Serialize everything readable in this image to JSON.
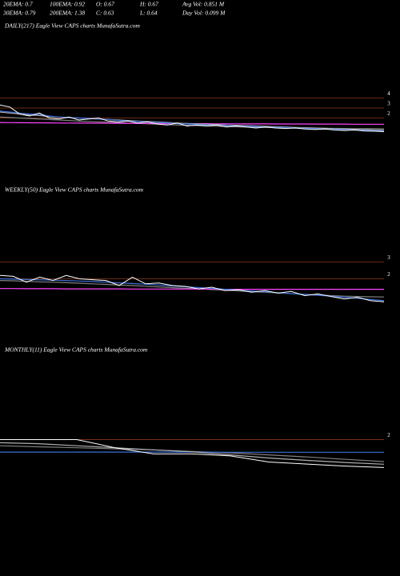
{
  "header": {
    "rows": [
      [
        "20EMA: 0.7",
        "100EMA: 0.92",
        "O: 0.67",
        "H: 0.67",
        "Avg Vol: 0.851 M"
      ],
      [
        "30EMA: 0.79",
        "200EMA: 1.38",
        "C: 0.63",
        "L: 0.64",
        "Day Vol: 0.099 M"
      ]
    ]
  },
  "chart_data": [
    {
      "type": "line",
      "title": "DAILY(217) Eagle  View  CAPS charts MunafaSutra.com",
      "ylim": [
        -3.4,
        11.4
      ],
      "yticks": [
        2,
        3,
        4
      ],
      "grid": true,
      "series": [
        {
          "color": "#808080",
          "values": [
            2.1,
            2.05,
            2.0,
            1.95,
            1.9,
            1.85,
            1.8,
            1.75,
            1.7,
            1.66,
            1.62,
            1.58,
            1.54,
            1.5,
            1.46,
            1.42,
            1.38,
            1.34,
            1.3,
            1.27,
            1.24,
            1.21,
            1.18,
            1.15,
            1.12,
            1.1,
            1.08,
            1.06,
            1.04,
            1.02,
            1.0,
            0.99,
            0.98,
            0.97,
            0.96,
            0.95,
            0.94,
            0.93,
            0.925,
            0.92
          ]
        },
        {
          "color": "#ff44ff",
          "values": [
            1.55,
            1.54,
            1.53,
            1.52,
            1.52,
            1.51,
            1.5,
            1.5,
            1.49,
            1.49,
            1.48,
            1.48,
            1.47,
            1.47,
            1.46,
            1.46,
            1.45,
            1.45,
            1.44,
            1.44,
            1.43,
            1.43,
            1.42,
            1.42,
            1.42,
            1.41,
            1.41,
            1.41,
            1.4,
            1.4,
            1.4,
            1.4,
            1.39,
            1.39,
            1.39,
            1.39,
            1.38,
            1.38,
            1.38,
            1.38
          ]
        },
        {
          "color": "#b0b0b0",
          "values": [
            2.6,
            2.5,
            2.4,
            2.3,
            2.25,
            2.15,
            2.1,
            2.05,
            2.0,
            1.95,
            1.9,
            1.85,
            1.8,
            1.75,
            1.7,
            1.65,
            1.6,
            1.55,
            1.5,
            1.45,
            1.42,
            1.38,
            1.35,
            1.3,
            1.27,
            1.23,
            1.2,
            1.16,
            1.13,
            1.1,
            1.06,
            1.03,
            1.0,
            0.97,
            0.94,
            0.91,
            0.88,
            0.85,
            0.82,
            0.79
          ]
        },
        {
          "color": "#3b6fd8",
          "values": [
            2.7,
            2.6,
            2.5,
            2.4,
            2.35,
            2.2,
            2.1,
            2.05,
            2.0,
            1.95,
            1.9,
            1.85,
            1.75,
            1.7,
            1.65,
            1.6,
            1.55,
            1.5,
            1.45,
            1.4,
            1.35,
            1.3,
            1.28,
            1.24,
            1.2,
            1.17,
            1.13,
            1.1,
            1.07,
            1.03,
            1.0,
            0.97,
            0.93,
            0.9,
            0.87,
            0.83,
            0.8,
            0.77,
            0.73,
            0.7
          ]
        },
        {
          "color": "#ffffff",
          "values": [
            3.3,
            3.1,
            2.4,
            2.2,
            2.5,
            2.0,
            1.9,
            2.1,
            1.8,
            1.9,
            2.0,
            1.7,
            1.6,
            1.7,
            1.5,
            1.6,
            1.4,
            1.3,
            1.5,
            1.2,
            1.3,
            1.2,
            1.3,
            1.1,
            1.2,
            1.1,
            1.0,
            1.1,
            1.0,
            0.95,
            1.0,
            0.9,
            0.85,
            0.9,
            0.8,
            0.75,
            0.8,
            0.7,
            0.68,
            0.63
          ]
        }
      ]
    },
    {
      "type": "line",
      "title": "WEEKLY(50) Eagle  View  CAPS charts MunafaSutra.com",
      "ylim": [
        -1.4,
        7.4
      ],
      "yticks": [
        2,
        3
      ],
      "grid": true,
      "series": [
        {
          "color": "#808080",
          "values": [
            1.9,
            1.88,
            1.85,
            1.82,
            1.8,
            1.77,
            1.74,
            1.7,
            1.67,
            1.63,
            1.6,
            1.56,
            1.52,
            1.48,
            1.44,
            1.4,
            1.36,
            1.32,
            1.28,
            1.24,
            1.2,
            1.16,
            1.12,
            1.08,
            1.04,
            1.0,
            0.97,
            0.95,
            0.93,
            0.92
          ]
        },
        {
          "color": "#ff44ff",
          "values": [
            1.42,
            1.42,
            1.41,
            1.41,
            1.41,
            1.4,
            1.4,
            1.4,
            1.4,
            1.4,
            1.39,
            1.39,
            1.39,
            1.39,
            1.39,
            1.39,
            1.39,
            1.38,
            1.38,
            1.38,
            1.38,
            1.38,
            1.38,
            1.38,
            1.38,
            1.38,
            1.38,
            1.38,
            1.38,
            1.38
          ]
        },
        {
          "color": "#3b6fd8",
          "values": [
            2.0,
            1.98,
            1.96,
            1.94,
            1.92,
            1.9,
            1.87,
            1.84,
            1.8,
            1.76,
            1.72,
            1.68,
            1.63,
            1.58,
            1.53,
            1.48,
            1.43,
            1.38,
            1.33,
            1.28,
            1.23,
            1.18,
            1.12,
            1.07,
            1.02,
            0.97,
            0.9,
            0.84,
            0.77,
            0.7
          ]
        },
        {
          "color": "#ffffff",
          "values": [
            2.2,
            2.15,
            1.8,
            2.1,
            1.9,
            2.2,
            2.0,
            1.95,
            1.9,
            1.6,
            2.1,
            1.7,
            1.75,
            1.6,
            1.55,
            1.4,
            1.5,
            1.3,
            1.35,
            1.2,
            1.3,
            1.15,
            1.25,
            1.0,
            1.1,
            0.95,
            0.8,
            0.9,
            0.7,
            0.63
          ]
        }
      ]
    },
    {
      "type": "line",
      "title": "MONTHLY(11) Eagle  View  CAPS charts MunafaSutra.com",
      "ylim": [
        -4.5,
        6.5
      ],
      "yticks": [
        2
      ],
      "grid": true,
      "series": [
        {
          "color": "#808080",
          "values": [
            1.7,
            1.65,
            1.6,
            1.55,
            1.5,
            1.42,
            1.35,
            1.25,
            1.15,
            1.03,
            0.92
          ]
        },
        {
          "color": "#3b6fd8",
          "values": [
            1.39,
            1.39,
            1.39,
            1.39,
            1.39,
            1.39,
            1.38,
            1.38,
            1.38,
            1.38,
            1.38
          ]
        },
        {
          "color": "#b0b0b0",
          "values": [
            1.85,
            1.8,
            1.7,
            1.6,
            1.5,
            1.4,
            1.25,
            1.1,
            0.98,
            0.88,
            0.79
          ]
        },
        {
          "color": "#ffffff",
          "values": [
            2.0,
            2.0,
            2.0,
            1.6,
            1.3,
            1.3,
            1.2,
            0.9,
            0.8,
            0.7,
            0.63
          ]
        }
      ]
    }
  ]
}
